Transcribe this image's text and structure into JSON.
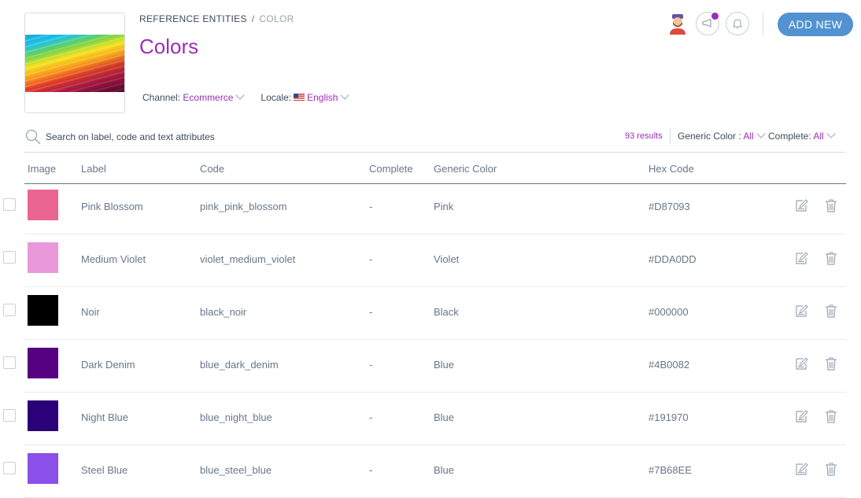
{
  "breadcrumb": {
    "parent": "REFERENCE ENTITIES",
    "separator": "/",
    "current": "COLOR"
  },
  "page_title": "Colors",
  "filters": {
    "channel_label": "Channel:",
    "channel_value": "Ecommerce",
    "locale_label": "Locale:",
    "locale_value": "English"
  },
  "header": {
    "add_new_label": "ADD NEW"
  },
  "search": {
    "placeholder": "Search on label, code and text attributes",
    "value": ""
  },
  "results": "93 results",
  "grid_filters": {
    "generic_label": "Generic Color :",
    "generic_value": "All",
    "complete_label": "Complete:",
    "complete_value": "All"
  },
  "columns": [
    "Image",
    "Label",
    "Code",
    "Complete",
    "Generic Color",
    "Hex Code"
  ],
  "rows": [
    {
      "label": "Pink Blossom",
      "code": "pink_pink_blossom",
      "complete": "-",
      "generic": "Pink",
      "hex": "#D87093",
      "swatch": "#EB6593"
    },
    {
      "label": "Medium Violet",
      "code": "violet_medium_violet",
      "complete": "-",
      "generic": "Violet",
      "hex": "#DDA0DD",
      "swatch": "#EA98DC"
    },
    {
      "label": "Noir",
      "code": "black_noir",
      "complete": "-",
      "generic": "Black",
      "hex": "#000000",
      "swatch": "#000000"
    },
    {
      "label": "Dark Denim",
      "code": "blue_dark_denim",
      "complete": "-",
      "generic": "Blue",
      "hex": "#4B0082",
      "swatch": "#560082"
    },
    {
      "label": "Night Blue",
      "code": "blue_night_blue",
      "complete": "-",
      "generic": "Blue",
      "hex": "#191970",
      "swatch": "#2B0078"
    },
    {
      "label": "Steel Blue",
      "code": "blue_steel_blue",
      "complete": "-",
      "generic": "Blue",
      "hex": "#7B68EE",
      "swatch": "#8B4FEA"
    }
  ],
  "colors": {
    "accent": "#9A2FB5",
    "primary_button": "#5292D1",
    "text": "#67768A"
  }
}
